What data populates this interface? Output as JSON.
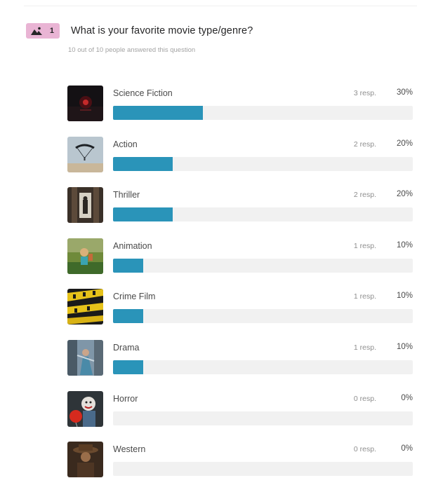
{
  "question": {
    "number": "1",
    "icon": "image-choice-icon",
    "title": "What is your favorite movie type/genre?",
    "subtitle": "10 out of 10 people answered this question"
  },
  "colors": {
    "badge": "#e9b4d4",
    "bar_fill": "#2a94b9",
    "bar_track": "#f1f1f1"
  },
  "options": [
    {
      "label": "Science Fiction",
      "responses": "3 resp.",
      "percent": "30%",
      "fraction": 0.3,
      "thumb": "science-fiction-thumbnail"
    },
    {
      "label": "Action",
      "responses": "2 resp.",
      "percent": "20%",
      "fraction": 0.2,
      "thumb": "action-thumbnail"
    },
    {
      "label": "Thriller",
      "responses": "2 resp.",
      "percent": "20%",
      "fraction": 0.2,
      "thumb": "thriller-thumbnail"
    },
    {
      "label": "Animation",
      "responses": "1 resp.",
      "percent": "10%",
      "fraction": 0.1,
      "thumb": "animation-thumbnail"
    },
    {
      "label": "Crime Film",
      "responses": "1 resp.",
      "percent": "10%",
      "fraction": 0.1,
      "thumb": "crime-film-thumbnail"
    },
    {
      "label": "Drama",
      "responses": "1 resp.",
      "percent": "10%",
      "fraction": 0.1,
      "thumb": "drama-thumbnail"
    },
    {
      "label": "Horror",
      "responses": "0 resp.",
      "percent": "0%",
      "fraction": 0.0,
      "thumb": "horror-thumbnail"
    },
    {
      "label": "Western",
      "responses": "0 resp.",
      "percent": "0%",
      "fraction": 0.0,
      "thumb": "western-thumbnail"
    }
  ]
}
